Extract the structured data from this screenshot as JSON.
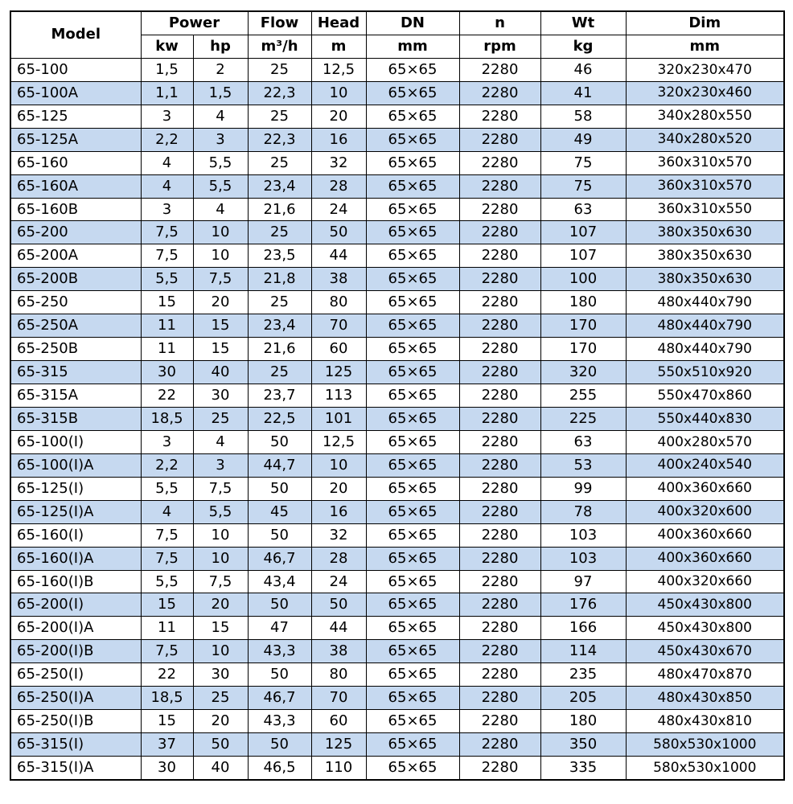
{
  "colors": {
    "row_alt": "#c6d9f0",
    "border": "#000000",
    "text": "#000000",
    "background": "#ffffff"
  },
  "table": {
    "header": {
      "model": "Model",
      "power": "Power",
      "flow": "Flow",
      "head": "Head",
      "dn": "DN",
      "n": "n",
      "wt": "Wt",
      "dim": "Dim",
      "units": {
        "kw": "kw",
        "hp": "hp",
        "flow": "m³/h",
        "head": "m",
        "dn": "mm",
        "n": "rpm",
        "wt": "kg",
        "dim": "mm"
      }
    },
    "rows": [
      [
        "65-100",
        "1,5",
        "2",
        "25",
        "12,5",
        "65×65",
        "2280",
        "46",
        "320x230x470"
      ],
      [
        "65-100A",
        "1,1",
        "1,5",
        "22,3",
        "10",
        "65×65",
        "2280",
        "41",
        "320x230x460"
      ],
      [
        "65-125",
        "3",
        "4",
        "25",
        "20",
        "65×65",
        "2280",
        "58",
        "340x280x550"
      ],
      [
        "65-125A",
        "2,2",
        "3",
        "22,3",
        "16",
        "65×65",
        "2280",
        "49",
        "340x280x520"
      ],
      [
        "65-160",
        "4",
        "5,5",
        "25",
        "32",
        "65×65",
        "2280",
        "75",
        "360x310x570"
      ],
      [
        "65-160A",
        "4",
        "5,5",
        "23,4",
        "28",
        "65×65",
        "2280",
        "75",
        "360x310x570"
      ],
      [
        "65-160B",
        "3",
        "4",
        "21,6",
        "24",
        "65×65",
        "2280",
        "63",
        "360x310x550"
      ],
      [
        "65-200",
        "7,5",
        "10",
        "25",
        "50",
        "65×65",
        "2280",
        "107",
        "380x350x630"
      ],
      [
        "65-200A",
        "7,5",
        "10",
        "23,5",
        "44",
        "65×65",
        "2280",
        "107",
        "380x350x630"
      ],
      [
        "65-200B",
        "5,5",
        "7,5",
        "21,8",
        "38",
        "65×65",
        "2280",
        "100",
        "380x350x630"
      ],
      [
        "65-250",
        "15",
        "20",
        "25",
        "80",
        "65×65",
        "2280",
        "180",
        "480x440x790"
      ],
      [
        "65-250A",
        "11",
        "15",
        "23,4",
        "70",
        "65×65",
        "2280",
        "170",
        "480x440x790"
      ],
      [
        "65-250B",
        "11",
        "15",
        "21,6",
        "60",
        "65×65",
        "2280",
        "170",
        "480x440x790"
      ],
      [
        "65-315",
        "30",
        "40",
        "25",
        "125",
        "65×65",
        "2280",
        "320",
        "550x510x920"
      ],
      [
        "65-315A",
        "22",
        "30",
        "23,7",
        "113",
        "65×65",
        "2280",
        "255",
        "550x470x860"
      ],
      [
        "65-315B",
        "18,5",
        "25",
        "22,5",
        "101",
        "65×65",
        "2280",
        "225",
        "550x440x830"
      ],
      [
        "65-100(I)",
        "3",
        "4",
        "50",
        "12,5",
        "65×65",
        "2280",
        "63",
        "400x280x570"
      ],
      [
        "65-100(I)A",
        "2,2",
        "3",
        "44,7",
        "10",
        "65×65",
        "2280",
        "53",
        "400x240x540"
      ],
      [
        "65-125(I)",
        "5,5",
        "7,5",
        "50",
        "20",
        "65×65",
        "2280",
        "99",
        "400x360x660"
      ],
      [
        "65-125(I)A",
        "4",
        "5,5",
        "45",
        "16",
        "65×65",
        "2280",
        "78",
        "400x320x600"
      ],
      [
        "65-160(I)",
        "7,5",
        "10",
        "50",
        "32",
        "65×65",
        "2280",
        "103",
        "400x360x660"
      ],
      [
        "65-160(I)A",
        "7,5",
        "10",
        "46,7",
        "28",
        "65×65",
        "2280",
        "103",
        "400x360x660"
      ],
      [
        "65-160(I)B",
        "5,5",
        "7,5",
        "43,4",
        "24",
        "65×65",
        "2280",
        "97",
        "400x320x660"
      ],
      [
        "65-200(I)",
        "15",
        "20",
        "50",
        "50",
        "65×65",
        "2280",
        "176",
        "450x430x800"
      ],
      [
        "65-200(I)A",
        "11",
        "15",
        "47",
        "44",
        "65×65",
        "2280",
        "166",
        "450x430x800"
      ],
      [
        "65-200(I)B",
        "7,5",
        "10",
        "43,3",
        "38",
        "65×65",
        "2280",
        "114",
        "450x430x670"
      ],
      [
        "65-250(I)",
        "22",
        "30",
        "50",
        "80",
        "65×65",
        "2280",
        "235",
        "480x470x870"
      ],
      [
        "65-250(I)A",
        "18,5",
        "25",
        "46,7",
        "70",
        "65×65",
        "2280",
        "205",
        "480x430x850"
      ],
      [
        "65-250(I)B",
        "15",
        "20",
        "43,3",
        "60",
        "65×65",
        "2280",
        "180",
        "480x430x810"
      ],
      [
        "65-315(I)",
        "37",
        "50",
        "50",
        "125",
        "65×65",
        "2280",
        "350",
        "580x530x1000"
      ],
      [
        "65-315(I)A",
        "30",
        "40",
        "46,5",
        "110",
        "65×65",
        "2280",
        "335",
        "580x530x1000"
      ]
    ]
  }
}
